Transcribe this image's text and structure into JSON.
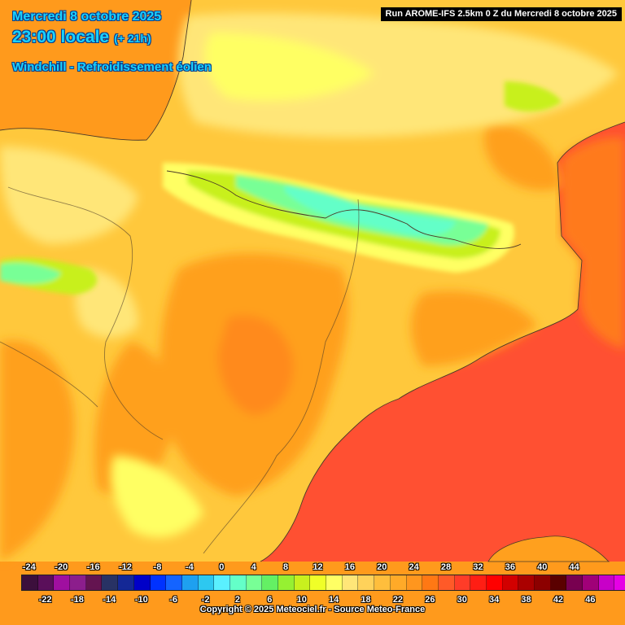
{
  "header": {
    "date": "Mercredi 8 octobre 2025",
    "time": "23:00 locale",
    "lead": "(+ 21h)",
    "parameter": "Windchill - Refroidissement éolien",
    "run": "Run AROME-IFS 2.5km 0 Z du Mercredi 8 octobre 2025"
  },
  "legend": {
    "top_labels": [
      "-24",
      "-20",
      "-16",
      "-12",
      "-8",
      "-4",
      "0",
      "4",
      "8",
      "12",
      "16",
      "20",
      "24",
      "28",
      "32",
      "36",
      "40",
      "44"
    ],
    "bottom_labels": [
      "-22",
      "-18",
      "-14",
      "-10",
      "-6",
      "-2",
      "2",
      "6",
      "10",
      "14",
      "18",
      "22",
      "26",
      "30",
      "34",
      "38",
      "42",
      "46"
    ],
    "colors": [
      "#3c0f3c",
      "#5a0f5a",
      "#a00fa0",
      "#8c1e8c",
      "#641450",
      "#283264",
      "#142896",
      "#0000c8",
      "#0032ff",
      "#1464ff",
      "#1ea0f0",
      "#2dc8f0",
      "#5af0ff",
      "#64ffc8",
      "#78ff96",
      "#64f064",
      "#96f032",
      "#c8f01e",
      "#f0ff28",
      "#ffff64",
      "#ffe678",
      "#ffd25a",
      "#ffbe3c",
      "#ffaa28",
      "#ff961e",
      "#ff7814",
      "#ff5a28",
      "#ff3c28",
      "#ff1e14",
      "#ff0000",
      "#d20000",
      "#aa0000",
      "#8c0000",
      "#5a0000",
      "#780050",
      "#a00078",
      "#c800c8",
      "#e600e6",
      "#ff28ff",
      "#ff78ff"
    ]
  },
  "copyright": "Copyright © 2025 Meteociel.fr - Source Meteo-France",
  "colors": {
    "sea_warm": "#ff5032",
    "land_warm": "#ffa01e",
    "land_mild": "#ffc83c",
    "land_cool": "#ffff64",
    "mountain_cold": "#64ff96",
    "title": "#19d2ff"
  }
}
